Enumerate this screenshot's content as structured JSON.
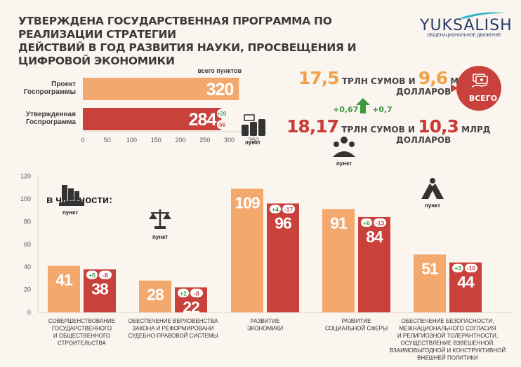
{
  "title": [
    "УТВЕРЖДЕНА ГОСУДАРСТВЕННАЯ ПРОГРАММА ПО РЕАЛИЗАЦИИ СТРАТЕГИИ",
    "ДЕЙСТВИЙ В ГОД РАЗВИТИЯ НАУКИ, ПРОСВЕЩЕНИЯ И ЦИФРОВОЙ ЭКОНОМИКИ"
  ],
  "logo": {
    "name": "YUKSALISH",
    "subtitle": "ОБЩЕНАЦИОНАЛЬНОЕ ДВИЖЕНИЕ"
  },
  "colors": {
    "project": "#f3a86e",
    "approved": "#c8413b",
    "plus": "#3c9a3c",
    "minus": "#c8413b",
    "text": "#3b3b3b"
  },
  "summary": {
    "line1_value1": "17,5",
    "line1_unit1": "ТРЛН СУМОВ И",
    "line1_value2": "9,6",
    "line1_unit2": "МЛРД",
    "line1_unit3": "ДОЛЛАРОВ",
    "delta1": "+0,67",
    "delta2": "+0,7",
    "line2_value1": "18,17",
    "line2_unit1": "ТРЛН СУМОВ И",
    "line2_value2": "10,3",
    "line2_unit2": "МЛРД",
    "line2_unit3": "ДОЛЛАРОВ",
    "badge_label": "ВСЕГО",
    "icon": "money-hand-icon"
  },
  "chart_data": [
    {
      "type": "bar",
      "orientation": "horizontal",
      "header": "всего пунктов",
      "categories": [
        "Проект Госпрограммы",
        "Утвержденная Госпрограмма"
      ],
      "category_lines": [
        [
          "Проект",
          "Госпрограммы"
        ],
        [
          "Утвержденная",
          "Госпрограмма"
        ]
      ],
      "values": [
        320,
        284
      ],
      "value_labels": [
        "320",
        "284"
      ],
      "changes": {
        "plus": "+20",
        "minus": "-56"
      },
      "xlim": [
        0,
        350
      ],
      "xticks": [
        "0",
        "50",
        "100",
        "150",
        "200",
        "250",
        "300",
        "350"
      ]
    },
    {
      "type": "bar",
      "subtitle": "в частности:",
      "ylim": [
        0,
        120
      ],
      "yticks": [
        "0",
        "20",
        "40",
        "60",
        "80",
        "100",
        "120"
      ],
      "series": [
        {
          "name": "Проект Госпрограммы",
          "values": [
            41,
            28,
            109,
            91,
            51
          ]
        },
        {
          "name": "Утвержденная Госпрограмма",
          "values": [
            38,
            22,
            96,
            84,
            44
          ]
        }
      ],
      "value_labels": {
        "project": [
          "41",
          "28",
          "109",
          "91",
          "51"
        ],
        "approved": [
          "38",
          "22",
          "96",
          "84",
          "44"
        ]
      },
      "changes_plus": [
        "+5",
        "+2",
        "+4",
        "+6",
        "+3"
      ],
      "changes_minus": [
        "-8",
        "-8",
        "-17",
        "-13",
        "-10"
      ],
      "icon_label": "пункт",
      "icons": [
        "building-hand-icon",
        "scales-icon",
        "coins-icon",
        "people-icon",
        "hands-icon"
      ],
      "categories": [
        [
          "СОВЕРШЕНСТВОВАНИЕ",
          "ГОСУДАРСТВЕННОГО",
          "И ОБЩЕСТВЕННОГО",
          "СТРОИТЕЛЬСТВА"
        ],
        [
          "ОБЕСПЕЧЕНИЕ ВЕРХОВЕНСТВА",
          "ЗАКОНА И РЕФОРМИРОВАНИ",
          "СУДЕБНО-ПРАВОВОЙ СИСТЕМЫ"
        ],
        [
          "РАЗВИТИЕ",
          "ЭКОНОМИКИ"
        ],
        [
          "РАЗВИТИЕ",
          "СОЦИАЛЬНОЙ СФЕРЫ"
        ],
        [
          "ОБЕСПЕЧЕНИЕ БЕЗОПАСНОСТИ,",
          "МЕЖНАЦИОНАЛЬНОГО СОГЛАСИЯ",
          "И РЕЛИГИОЗНОЙ ТОЛЕРАНТНОСТИ,",
          "ОСУЩЕСТВЛЕНИЕ ВЗВЕШЕННОЙ,",
          "ВЗАИМОВЫГОДНОЙ И КОНСТРУКТИВНОЙ",
          "ВНЕШНЕЙ ПОЛИТИКИ"
        ]
      ]
    }
  ]
}
